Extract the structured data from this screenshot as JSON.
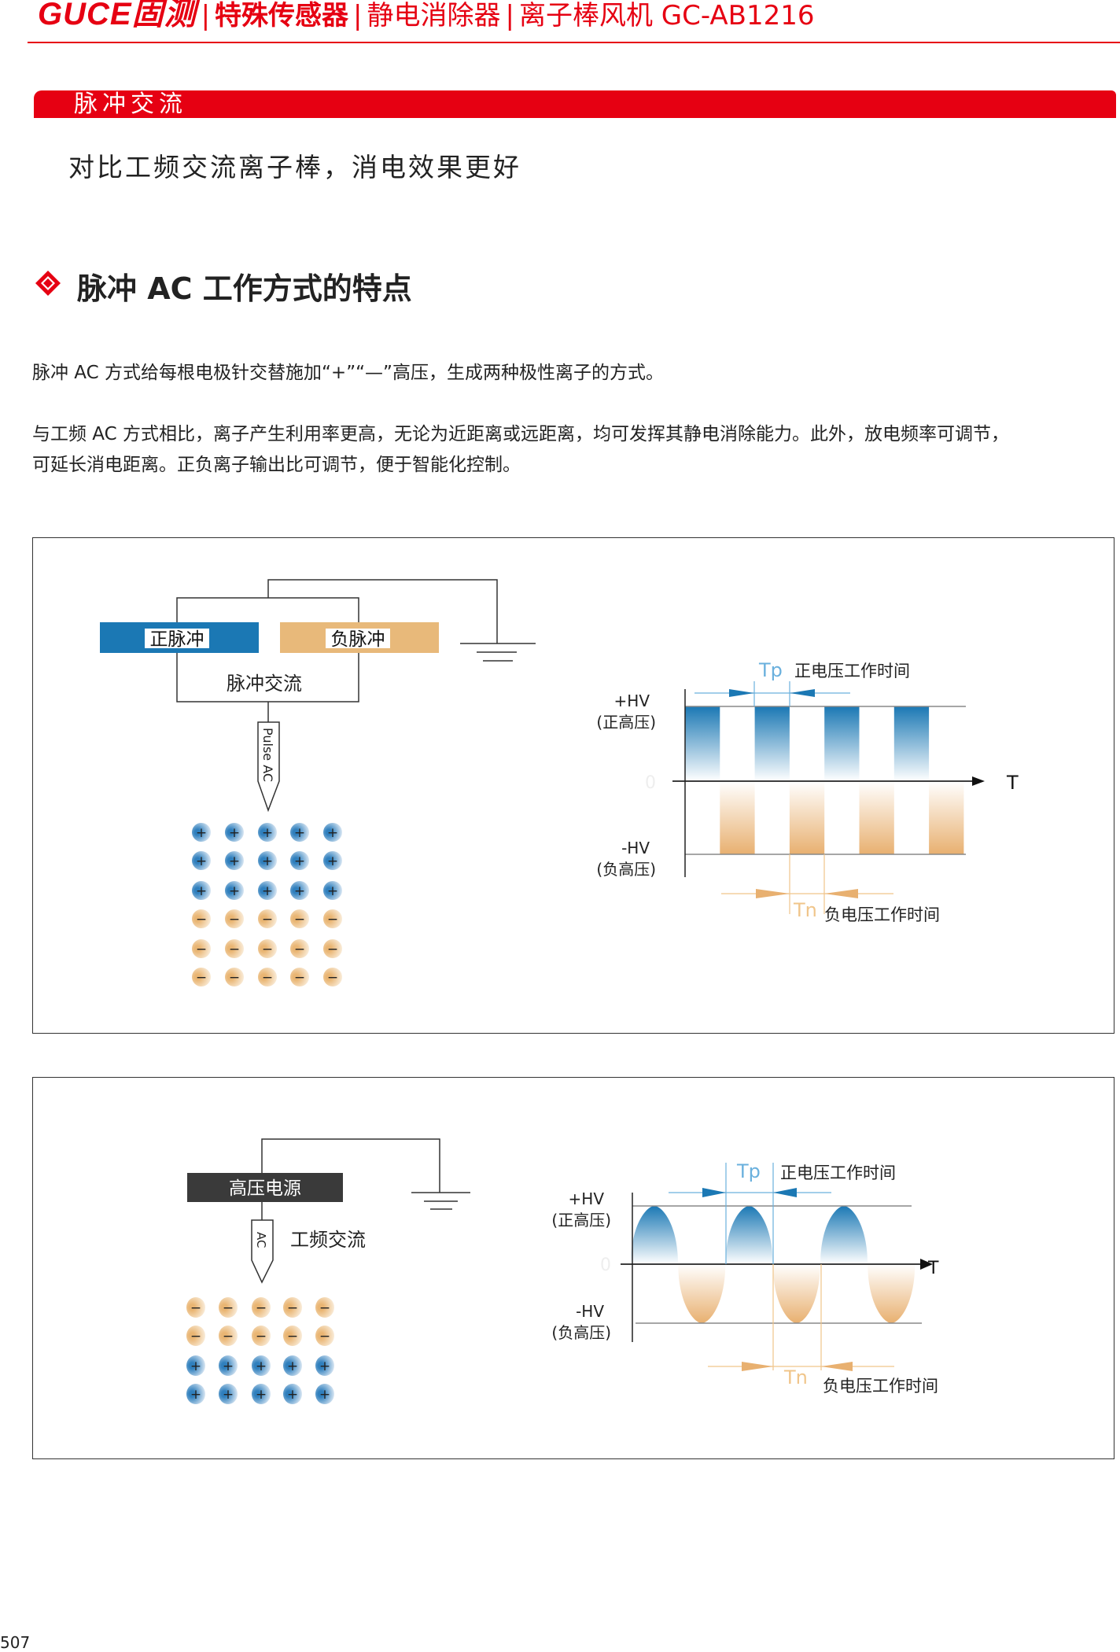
{
  "header": {
    "logo": "GUCE固测",
    "category": "特殊传感器",
    "subcategory": "静电消除器",
    "product": "离子棒风机 GC-AB1216",
    "separator": "|"
  },
  "section_bar": {
    "label": "脉冲交流"
  },
  "subtitle": "对比工频交流离子棒，消电效果更好",
  "heading": "脉冲 AC 工作方式的特点",
  "paragraphs": [
    "脉冲 AC 方式给每根电极针交替施加“+”“—”高压，生成两种极性离子的方式。",
    "与工频 AC 方式相比，离子产生利用率更高，无论为近距离或远距离，均可发挥其静电消除能力。此外，放电频率可调节，",
    "可延长消电距离。正负离子输出比可调节，便于智能化控制。"
  ],
  "diagram_pulse": {
    "positive_pulse": "正脉冲",
    "negative_pulse": "负脉冲",
    "source_label": "脉冲交流",
    "probe_label": "Pulse AC",
    "ion_rows": [
      "+",
      "+",
      "+",
      "−",
      "−",
      "−"
    ],
    "ions_per_row": 5,
    "hv_pos": "+HV",
    "hv_pos_cn": "(正高压)",
    "hv_neg": "-HV",
    "hv_neg_cn": "(负高压)",
    "zero": "0",
    "axis": "T",
    "tp": "Tp",
    "tp_desc": "正电压工作时间",
    "tn": "Tn",
    "tn_desc": "负电压工作时间",
    "pulse_count": 4
  },
  "diagram_ac": {
    "source_label": "高压电源",
    "probe_label": "AC",
    "type_label": "工频交流",
    "ion_rows": [
      "−",
      "−",
      "+",
      "+"
    ],
    "ions_per_row": 5,
    "hv_pos": "+HV",
    "hv_pos_cn": "(正高压)",
    "hv_neg": "-HV",
    "hv_neg_cn": "(负高压)",
    "zero": "0",
    "axis": "T",
    "tp": "Tp",
    "tp_desc": "正电压工作时间",
    "tn": "Tn",
    "tn_desc": "负电压工作时间",
    "cycles": 3
  },
  "page_number": "507",
  "colors": {
    "brand_red": "#e60012",
    "positive_blue": "#1b78b4",
    "negative_orange": "#e8b97a",
    "tp_blue": "#6ab0dd",
    "tn_orange": "#f0c58a",
    "power_box": "#3a3a3a"
  }
}
